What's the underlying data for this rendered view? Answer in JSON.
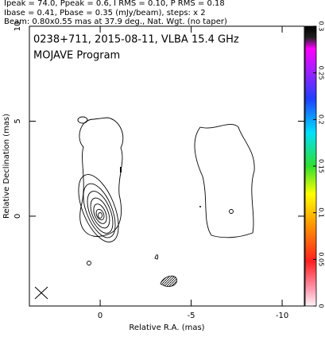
{
  "chart_data": {
    "type": "contour",
    "annotations": [
      "Ipeak = 74.0, Ppeak = 0.6, I RMS = 0.10, P RMS = 0.18",
      "Ibase = 0.41, Pbase = 0.35 (mJy/beam), steps: x 2",
      "Beam: 0.80x0.55 mas at 37.9 deg., Nat. Wgt. (no taper)"
    ],
    "title": "0238+711, 2015-08-11, VLBA 15.4 GHz",
    "subtitle": "MOJAVE Program",
    "xlabel": "Relative R.A. (mas)",
    "ylabel": "Relative Declination (mas)",
    "xlim": [
      3.89,
      -11.22
    ],
    "ylim": [
      -4.73,
      10
    ],
    "xticks": [
      0,
      -5,
      -10
    ],
    "yticks": [
      0,
      5,
      10
    ],
    "colorbar": {
      "lim": [
        0,
        0.3
      ],
      "ticks": [
        0,
        0.05,
        0.1,
        0.15,
        0.2,
        0.25,
        0.3
      ]
    }
  }
}
